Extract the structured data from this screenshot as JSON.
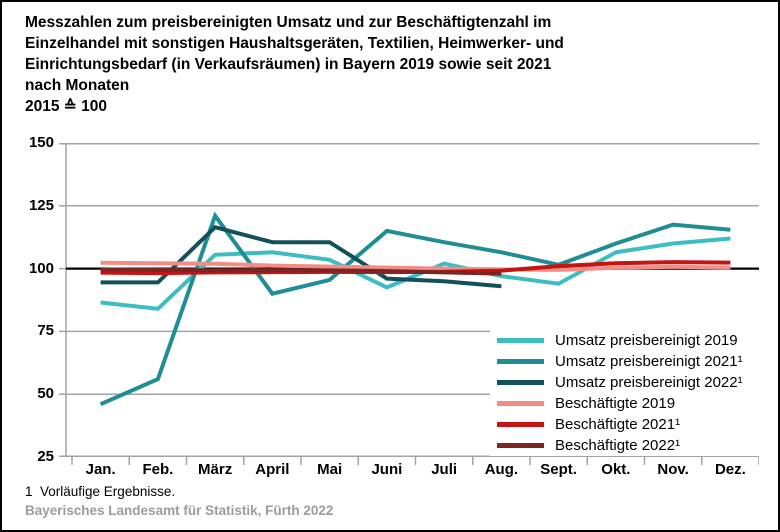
{
  "header": {
    "title": "Messzahlen zum preisbereinigten Umsatz und zur Beschäftigtenzahl im Einzelhandel mit sonstigen Haushaltsgeräten, Textilien, Heimwerker- und Einrichtungsbedarf (in Verkaufsräumen) in Bayern 2019 sowie seit 2021 nach Monaten",
    "title_lines": [
      "Messzahlen zum preisbereinigten Umsatz und zur Beschäftigtenzahl im",
      "Einzelhandel mit sonstigen Haushaltsgeräten, Textilien, Heimwerker- und",
      "Einrichtungsbedarf (in Verkaufsräumen) in Bayern 2019 sowie seit 2021",
      "nach Monaten"
    ],
    "subtitle": "2015 ≙ 100"
  },
  "chart_data": {
    "type": "line",
    "categories": [
      "Jan.",
      "Feb.",
      "März",
      "April",
      "Mai",
      "Juni",
      "Juli",
      "Aug.",
      "Sept.",
      "Okt.",
      "Nov.",
      "Dez."
    ],
    "series": [
      {
        "name": "Umsatz preisbereinigt 2019",
        "color": "#3dbcc1",
        "values": [
          86.5,
          84,
          105.5,
          106.5,
          103.5,
          92.5,
          102,
          97,
          94,
          106.5,
          110,
          112
        ]
      },
      {
        "name": "Umsatz preisbereinigt 2021¹",
        "color": "#1f8e94",
        "values": [
          46,
          56,
          121,
          90,
          95.5,
          115,
          110.5,
          106.5,
          101.5,
          110,
          117.5,
          115.5
        ]
      },
      {
        "name": "Umsatz preisbereinigt 2022¹",
        "color": "#12515a",
        "values": [
          94.5,
          94.5,
          116.5,
          110.5,
          110.5,
          96,
          95,
          93,
          null,
          null,
          null,
          null
        ]
      },
      {
        "name": "Beschäftigte 2019",
        "color": "#f28c85",
        "values": [
          102.3,
          102.1,
          101.9,
          101.2,
          100.8,
          100.4,
          100,
          99.7,
          99.5,
          100.3,
          100.7,
          100.4
        ]
      },
      {
        "name": "Beschäftigte 2021¹",
        "color": "#c51411",
        "values": [
          98.4,
          98.2,
          98.5,
          98.6,
          98.7,
          98.6,
          98.7,
          99.2,
          101,
          102.1,
          102.6,
          102.4
        ]
      },
      {
        "name": "Beschäftigte 2022¹",
        "color": "#7c2523",
        "values": [
          99.7,
          99.5,
          99.3,
          99.4,
          99.3,
          99,
          98.5,
          98,
          null,
          null,
          null,
          null
        ]
      }
    ],
    "ylim": [
      25,
      150
    ],
    "yticks": [
      150,
      125,
      100,
      75,
      50,
      25
    ],
    "baseline": 100,
    "grid": "horizontal",
    "legend_position": "inside-bottom-right",
    "colors": {
      "gridline": "#a3a3a3",
      "baseline": "#000000",
      "source_text": "#9c9c9c"
    }
  },
  "footnote": "1  Vorläufige Ergebnisse.",
  "source": "Bayerisches Landesamt für Statistik, Fürth 2022"
}
